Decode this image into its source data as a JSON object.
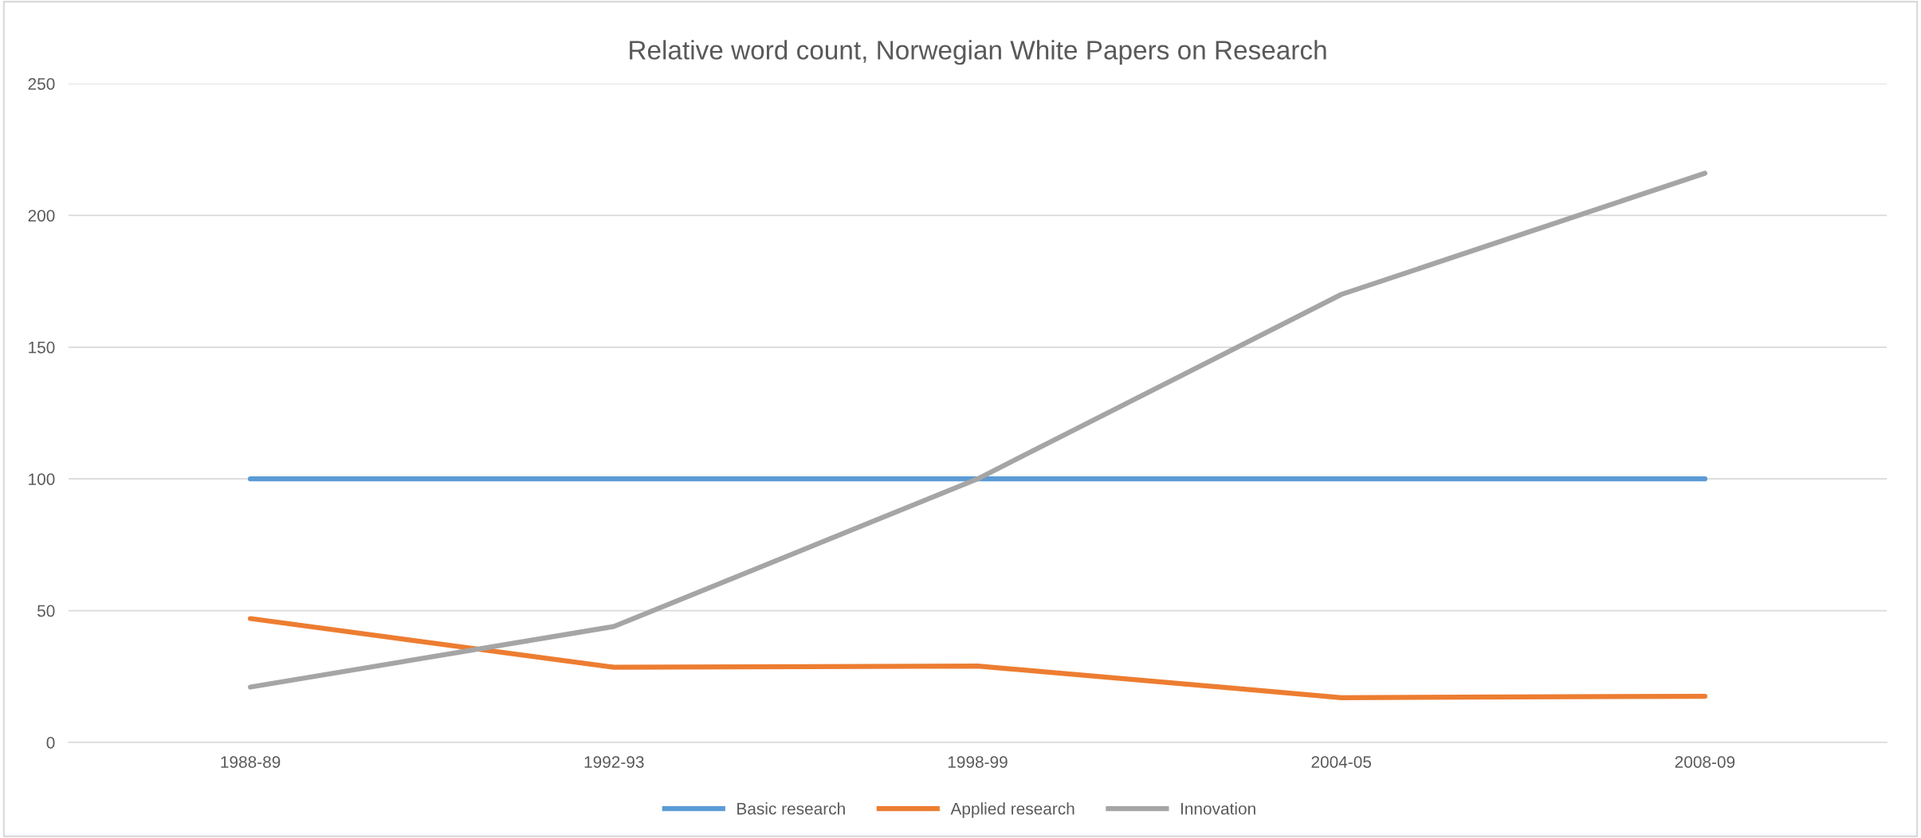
{
  "chart_data": {
    "type": "line",
    "title": "Relative word count, Norwegian White Papers on Research",
    "categories": [
      "1988-89",
      "1992-93",
      "1998-99",
      "2004-05",
      "2008-09"
    ],
    "series": [
      {
        "name": "Basic research",
        "color": "#5b9bd5",
        "values": [
          100,
          100,
          100,
          100,
          100
        ]
      },
      {
        "name": "Applied research",
        "color": "#ed7d31",
        "values": [
          47,
          28.5,
          29,
          17,
          17.5
        ]
      },
      {
        "name": "Innovation",
        "color": "#a5a5a5",
        "values": [
          21,
          44,
          100,
          170,
          216
        ]
      }
    ],
    "ylim": [
      0,
      250
    ],
    "yticks": [
      0,
      50,
      100,
      150,
      200,
      250
    ],
    "grid": "y",
    "legend": "bottom",
    "marker": "none",
    "line_style": "solid"
  }
}
